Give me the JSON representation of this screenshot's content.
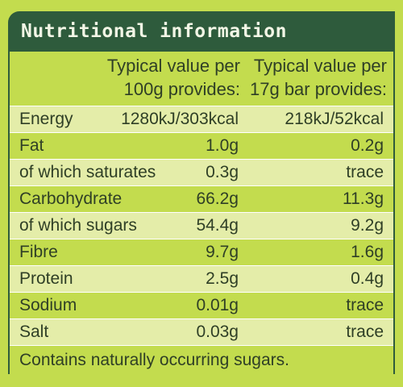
{
  "title": "Nutritional information",
  "columns": {
    "per100g": "Typical value per\n100g provides:",
    "per_bar": "Typical value per\n17g bar provides:"
  },
  "rows": [
    {
      "label": "Energy",
      "per100g": "1280kJ/303kcal",
      "per_bar": "218kJ/52kcal"
    },
    {
      "label": "Fat",
      "per100g": "1.0g",
      "per_bar": "0.2g"
    },
    {
      "label": "of which saturates",
      "per100g": "0.3g",
      "per_bar": "trace"
    },
    {
      "label": "Carbohydrate",
      "per100g": "66.2g",
      "per_bar": "11.3g"
    },
    {
      "label": "of which sugars",
      "per100g": "54.4g",
      "per_bar": "9.2g"
    },
    {
      "label": "Fibre",
      "per100g": "9.7g",
      "per_bar": "1.6g"
    },
    {
      "label": "Protein",
      "per100g": "2.5g",
      "per_bar": "0.4g"
    },
    {
      "label": "Sodium",
      "per100g": "0.01g",
      "per_bar": "trace"
    },
    {
      "label": "Salt",
      "per100g": "0.03g",
      "per_bar": "trace"
    }
  ],
  "footnote": "Contains naturally occurring sugars.",
  "colors": {
    "header_bg": "#2e5b3c",
    "panel": "#c3dc4e",
    "shade": "#e4eda9"
  }
}
